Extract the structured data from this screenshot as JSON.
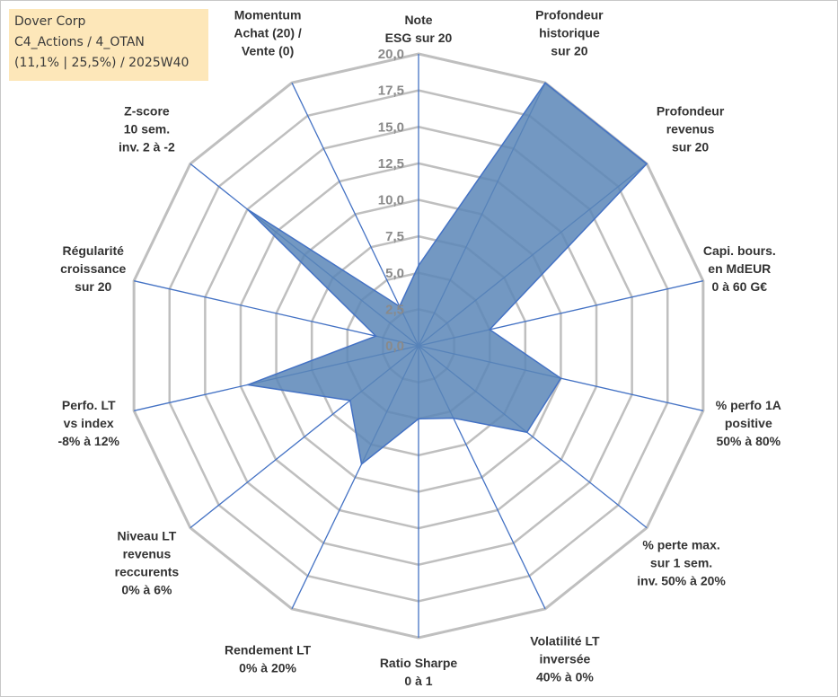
{
  "info": {
    "company": "Dover Corp",
    "category": "C4_Actions / 4_OTAN",
    "stats": "(11,1% | 25,5%) / 2025W40"
  },
  "chart_data": {
    "type": "radar",
    "title": "",
    "rlim": [
      0,
      20
    ],
    "ticks": [
      "0,0",
      "2,5",
      "5,0",
      "7,5",
      "10,0",
      "12,5",
      "15,0",
      "17,5",
      "20,0"
    ],
    "grid": true,
    "colors": {
      "fill": "#5b86b7",
      "line": "#4472c4",
      "grid": "#bfbfbf",
      "spoke": "#4472c4"
    },
    "axes": [
      {
        "label": [
          "Note",
          "ESG sur 20"
        ],
        "value": 5.5
      },
      {
        "label": [
          "Profondeur",
          "historique",
          "sur 20"
        ],
        "value": 20
      },
      {
        "label": [
          "Profondeur",
          "revenus",
          "sur 20"
        ],
        "value": 20
      },
      {
        "label": [
          "Capi. bours.",
          "en MdEUR",
          "0 à 60 G€"
        ],
        "value": 5
      },
      {
        "label": [
          "% perfo 1A",
          "positive",
          "50% à 80%"
        ],
        "value": 10
      },
      {
        "label": [
          "% perte max.",
          "sur 1 sem.",
          "inv. 50% à 20%"
        ],
        "value": 9.5
      },
      {
        "label": [
          "Volatilité LT",
          "inversée",
          "40% à 0%"
        ],
        "value": 5.5
      },
      {
        "label": [
          "Ratio Sharpe",
          "0 à 1"
        ],
        "value": 5
      },
      {
        "label": [
          "Rendement LT",
          "0% à 20%"
        ],
        "value": 9
      },
      {
        "label": [
          "Niveau LT",
          "revenus",
          "reccurents",
          "0% à 6%"
        ],
        "value": 6
      },
      {
        "label": [
          "Perfo. LT",
          "vs index",
          "-8% à 12%"
        ],
        "value": 12
      },
      {
        "label": [
          "Régularité",
          "croissance",
          "sur 20"
        ],
        "value": 3
      },
      {
        "label": [
          "Z-score",
          "10 sem.",
          "inv. 2 à -2"
        ],
        "value": 15
      },
      {
        "label": [
          "Momentum",
          "Achat (20) /",
          "Vente (0)"
        ],
        "value": 3
      }
    ]
  }
}
